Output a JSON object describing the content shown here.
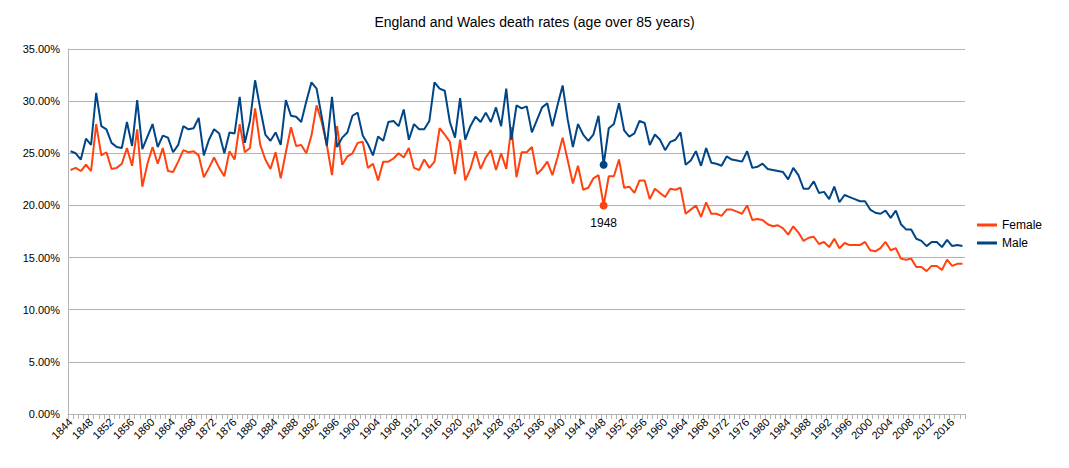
{
  "chart_data": {
    "type": "line",
    "title": "England and Wales death rates (age over 85 years)",
    "categories": [
      "1844",
      null,
      null,
      null,
      "1848",
      null,
      null,
      null,
      "1852",
      null,
      null,
      null,
      "1856",
      null,
      null,
      null,
      "1860",
      null,
      null,
      null,
      "1864",
      null,
      null,
      null,
      "1868",
      null,
      null,
      null,
      "1872",
      null,
      null,
      null,
      "1876",
      null,
      null,
      null,
      "1880",
      null,
      null,
      null,
      "1884",
      null,
      null,
      null,
      "1888",
      null,
      null,
      null,
      "1892",
      null,
      null,
      null,
      "1896",
      null,
      null,
      null,
      "1900",
      null,
      null,
      null,
      "1904",
      null,
      null,
      null,
      "1908",
      null,
      null,
      null,
      "1912",
      null,
      null,
      null,
      "1916",
      null,
      null,
      null,
      "1920",
      null,
      null,
      null,
      "1924",
      null,
      null,
      null,
      "1928",
      null,
      null,
      null,
      "1932",
      null,
      null,
      null,
      "1936",
      null,
      null,
      null,
      "1940",
      null,
      null,
      null,
      "1944",
      null,
      null,
      null,
      "1948",
      null,
      null,
      null,
      "1952",
      null,
      null,
      null,
      "1956",
      null,
      null,
      null,
      "1960",
      null,
      null,
      null,
      "1964",
      null,
      null,
      null,
      "1968",
      null,
      null,
      null,
      "1972",
      null,
      null,
      null,
      "1976",
      null,
      null,
      null,
      "1980",
      null,
      null,
      null,
      "1984",
      null,
      null,
      null,
      "1988",
      null,
      null,
      null,
      "1992",
      null,
      null,
      null,
      "1996",
      null,
      null,
      null,
      "2000",
      null,
      null,
      null,
      "2004",
      null,
      null,
      null,
      "2008",
      null,
      null,
      null,
      "2012",
      null,
      null,
      null,
      "2016",
      null,
      null
    ],
    "series": [
      {
        "name": "Female",
        "color": "#ff420e",
        "marker": "none",
        "line_style": "solid",
        "values": [
          23.4,
          23.6,
          23.3,
          23.9,
          23.3,
          27.8,
          24.8,
          25.1,
          23.5,
          23.6,
          24.0,
          25.5,
          23.8,
          27.3,
          21.8,
          24.0,
          25.6,
          24.0,
          25.5,
          23.3,
          23.2,
          24.2,
          25.3,
          25.1,
          25.2,
          24.8,
          22.7,
          23.6,
          24.6,
          23.6,
          22.8,
          25.2,
          24.4,
          27.8,
          25.1,
          25.5,
          29.3,
          25.8,
          24.4,
          23.5,
          25.1,
          22.6,
          25.1,
          27.5,
          25.7,
          25.8,
          25.0,
          26.7,
          29.6,
          28.0,
          25.8,
          22.9,
          27.6,
          23.9,
          24.7,
          25.0,
          26.0,
          26.1,
          23.6,
          24.0,
          22.4,
          24.2,
          24.2,
          24.5,
          25.0,
          24.6,
          25.5,
          23.6,
          23.4,
          24.4,
          23.6,
          24.2,
          27.4,
          26.8,
          26.1,
          23.0,
          26.3,
          22.4,
          23.5,
          25.2,
          23.5,
          24.6,
          25.3,
          23.4,
          25.0,
          23.5,
          27.5,
          22.7,
          25.1,
          25.1,
          25.6,
          23.0,
          23.5,
          24.2,
          22.9,
          24.6,
          26.5,
          24.3,
          22.1,
          23.8,
          21.5,
          21.7,
          22.6,
          22.9,
          20.0,
          22.8,
          22.8,
          24.4,
          21.7,
          21.8,
          21.2,
          22.4,
          22.4,
          20.6,
          21.6,
          21.2,
          20.8,
          21.6,
          21.5,
          21.7,
          19.2,
          19.6,
          20.0,
          18.9,
          20.3,
          19.2,
          19.2,
          19.0,
          19.6,
          19.6,
          19.4,
          19.2,
          20.0,
          18.6,
          18.7,
          18.6,
          18.2,
          18.0,
          18.1,
          17.8,
          17.2,
          18.0,
          17.4,
          16.6,
          16.9,
          17.0,
          16.3,
          16.5,
          16.0,
          16.8,
          15.9,
          16.4,
          16.2,
          16.2,
          16.2,
          16.5,
          15.7,
          15.6,
          15.9,
          16.5,
          15.7,
          15.9,
          14.9,
          14.8,
          14.9,
          14.1,
          14.1,
          13.7,
          14.2,
          14.2,
          13.8,
          14.8,
          14.2,
          14.4,
          14.4
        ]
      },
      {
        "name": "Male",
        "color": "#004586",
        "marker": "none",
        "line_style": "solid",
        "values": [
          25.2,
          25.0,
          24.4,
          26.4,
          25.8,
          30.8,
          27.6,
          27.3,
          26.0,
          25.6,
          25.5,
          28.0,
          25.7,
          30.1,
          25.4,
          26.6,
          27.8,
          25.6,
          26.7,
          26.5,
          25.1,
          25.8,
          27.6,
          27.3,
          27.4,
          28.4,
          24.8,
          26.3,
          27.3,
          26.9,
          25.0,
          27.0,
          26.9,
          30.4,
          26.0,
          28.1,
          32.0,
          29.3,
          26.8,
          26.2,
          27.0,
          25.8,
          30.1,
          28.6,
          28.5,
          28.0,
          30.0,
          31.8,
          31.2,
          28.5,
          25.7,
          30.4,
          25.6,
          26.5,
          27.0,
          28.6,
          28.9,
          26.7,
          25.9,
          24.8,
          26.6,
          26.2,
          28.0,
          28.1,
          27.6,
          29.2,
          26.3,
          27.8,
          27.3,
          27.3,
          28.1,
          31.8,
          31.2,
          31.0,
          28.0,
          26.5,
          30.3,
          26.3,
          27.6,
          28.5,
          28.0,
          28.9,
          28.0,
          29.4,
          27.6,
          31.2,
          26.3,
          29.6,
          29.3,
          29.5,
          27.0,
          28.2,
          29.4,
          29.8,
          27.6,
          29.6,
          31.5,
          28.2,
          25.6,
          27.8,
          26.8,
          26.2,
          26.8,
          28.6,
          23.9,
          27.4,
          27.8,
          29.8,
          27.2,
          26.6,
          26.9,
          28.1,
          27.9,
          25.8,
          26.8,
          26.3,
          25.3,
          26.1,
          26.3,
          27.0,
          23.9,
          24.3,
          25.2,
          23.8,
          25.5,
          24.1,
          24.0,
          23.8,
          24.7,
          24.4,
          24.3,
          24.2,
          25.2,
          23.6,
          23.7,
          24.0,
          23.5,
          23.4,
          23.3,
          23.2,
          22.5,
          23.6,
          22.9,
          21.6,
          21.6,
          22.3,
          21.2,
          21.3,
          20.6,
          21.8,
          20.3,
          21.0,
          20.8,
          20.6,
          20.4,
          20.4,
          19.6,
          19.3,
          19.2,
          19.5,
          18.8,
          19.5,
          18.2,
          17.7,
          17.7,
          16.8,
          16.6,
          16.1,
          16.5,
          16.5,
          16.0,
          16.7,
          16.1,
          16.2,
          16.1
        ]
      }
    ],
    "ylim": [
      0,
      35
    ],
    "yticks": [
      {
        "value": 0,
        "label": "0.00%"
      },
      {
        "value": 5,
        "label": "5.00%"
      },
      {
        "value": 10,
        "label": "10.00%"
      },
      {
        "value": 15,
        "label": "15.00%"
      },
      {
        "value": 20,
        "label": "20.00%"
      },
      {
        "value": 25,
        "label": "25.00%"
      },
      {
        "value": 30,
        "label": "30.00%"
      },
      {
        "value": 35,
        "label": "35.00%"
      }
    ],
    "annotations": [
      {
        "x": "1948",
        "text": "1948"
      }
    ],
    "grid": true,
    "legend": "right"
  }
}
